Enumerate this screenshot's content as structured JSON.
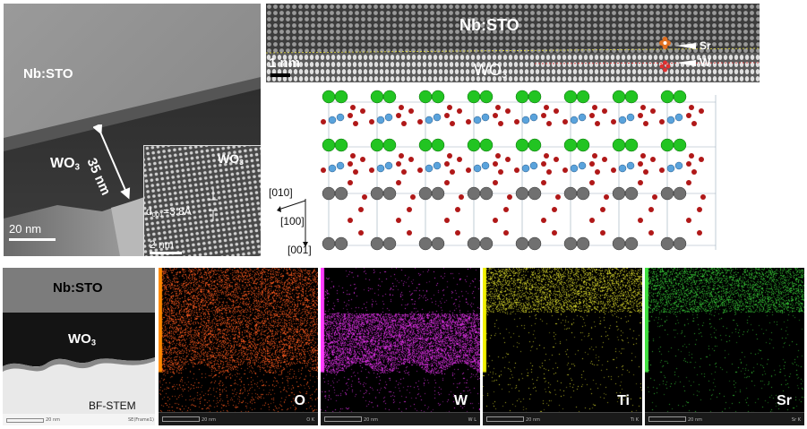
{
  "panel_a": {
    "substrate_label": "Nb:STO",
    "film_label_base": "WO",
    "film_label_sub": "3",
    "thickness_label": "35 nm",
    "scale_bar": "20 nm",
    "inset": {
      "film_label_base": "WO",
      "film_label_sub": "3",
      "d_label_base": "d",
      "d_label_sub": "001",
      "d_label_value": "=3.8Å",
      "scale_bar": "2 nm"
    }
  },
  "panel_b": {
    "substrate_label": "Nb:STO",
    "film_label_base": "WO",
    "film_label_sub": "3",
    "scale_bar": "1 nm",
    "sr_label": "Sr",
    "w_label": "W"
  },
  "panel_c": {
    "axes": [
      "[010]",
      "[100]",
      "[001]"
    ],
    "colors": {
      "sr": "#22c422",
      "w": "#5aa3dc",
      "o": "#b01818",
      "ti": "#707070"
    }
  },
  "panel_d": {
    "substrate_label": "Nb:STO",
    "film_label_base": "WO",
    "film_label_sub": "3",
    "mode_label": "BF-STEM",
    "scale_text": "20 nm",
    "frame_text": "SE(Frame1)"
  },
  "eds_maps": [
    {
      "element": "O",
      "color": "#ff5a1e",
      "bar": "#ff8a00",
      "footer": "O K",
      "scale_text": "20 nm"
    },
    {
      "element": "W",
      "color": "#e030e8",
      "bar": "#ff3cff",
      "footer": "W L",
      "scale_text": "20 nm"
    },
    {
      "element": "Ti",
      "color": "#d8d82a",
      "bar": "#f0f000",
      "footer": "Ti K",
      "scale_text": "20 nm"
    },
    {
      "element": "Sr",
      "color": "#36c836",
      "bar": "#40e040",
      "footer": "Sr K",
      "scale_text": "20 nm"
    }
  ]
}
